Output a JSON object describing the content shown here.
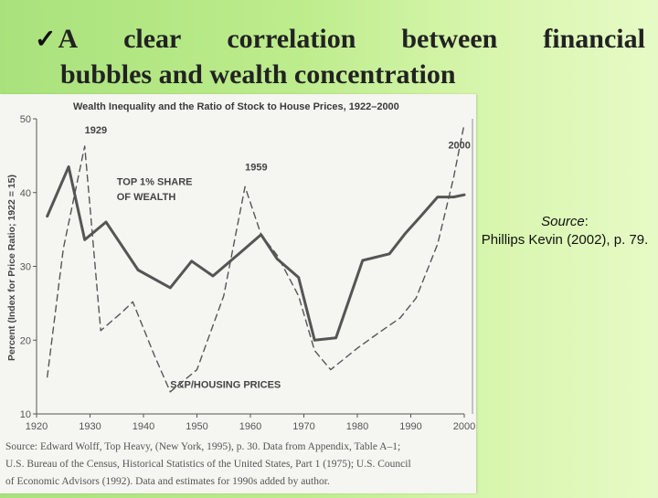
{
  "slide": {
    "check_glyph": "✓",
    "title_words": [
      "A",
      "clear",
      "correlation",
      "between",
      "financial"
    ],
    "title_line2": "bubbles and wealth concentration",
    "source_label": "Source",
    "source_colon": ":",
    "source_citation": "Phillips Kevin (2002), p. 79.",
    "background_color_left": "#a9e27c",
    "background_color_right": "#e7fac6"
  },
  "chart_data": {
    "type": "line",
    "title": "Wealth Inequality and the Ratio of Stock to House Prices, 1922–2000",
    "ylabel": "Percent (Index for Price Ratio; 1922 = 15)",
    "xlabel": "",
    "xlim": [
      1920,
      2000
    ],
    "ylim": [
      10,
      50
    ],
    "x_ticks": [
      "1920",
      "1930",
      "1940",
      "1950",
      "1960",
      "1970",
      "1980",
      "1990",
      "2000"
    ],
    "y_ticks": [
      "10",
      "20",
      "30",
      "40",
      "50"
    ],
    "grid": false,
    "series": [
      {
        "name": "TOP 1% SHARE OF WEALTH",
        "style": "solid",
        "color": "#555555",
        "x": [
          1922,
          1926,
          1929,
          1933,
          1939,
          1945,
          1949,
          1953,
          1958,
          1962,
          1965,
          1969,
          1972,
          1976,
          1981,
          1986,
          1989,
          1992,
          1995,
          1998,
          2000
        ],
        "y": [
          36.8,
          43.5,
          33.6,
          36.0,
          29.5,
          27.1,
          30.7,
          28.7,
          31.8,
          34.3,
          31.0,
          28.5,
          20.0,
          20.3,
          30.8,
          31.7,
          34.5,
          36.9,
          39.4,
          39.4,
          39.7
        ]
      },
      {
        "name": "S&P/HOUSING PRICES",
        "style": "dashed",
        "color": "#555555",
        "x": [
          1922,
          1925,
          1929,
          1932,
          1936,
          1938,
          1942,
          1945,
          1950,
          1955,
          1959,
          1962,
          1965,
          1969,
          1972,
          1975,
          1980,
          1984,
          1988,
          1991,
          1995,
          1998,
          2000
        ],
        "y": [
          15.0,
          32.4,
          46.3,
          21.3,
          23.8,
          25.2,
          18.0,
          13.0,
          16.0,
          26.0,
          40.8,
          34.3,
          31.5,
          26.0,
          18.6,
          16.0,
          18.9,
          21.0,
          23.0,
          25.7,
          33.0,
          42.0,
          49.3
        ]
      }
    ],
    "annotations": [
      {
        "text": "1929",
        "x": 1929,
        "y": 48
      },
      {
        "text": "1959",
        "x": 1959,
        "y": 43
      },
      {
        "text": "2000",
        "x": 1997,
        "y": 46
      },
      {
        "text": "TOP 1% SHARE",
        "x": 1935,
        "y": 41
      },
      {
        "text": "OF WEALTH",
        "x": 1935,
        "y": 39
      },
      {
        "text": "S&P/HOUSING PRICES",
        "x": 1945,
        "y": 13.5
      }
    ],
    "source_caption": [
      "Source: Edward Wolff, Top Heavy, (New York, 1995), p. 30. Data from Appendix, Table A–1;",
      "U.S. Bureau of the Census, Historical Statistics of the United States, Part 1 (1975); U.S. Council",
      "of Economic Advisors (1992). Data and estimates for 1990s added by author."
    ]
  }
}
